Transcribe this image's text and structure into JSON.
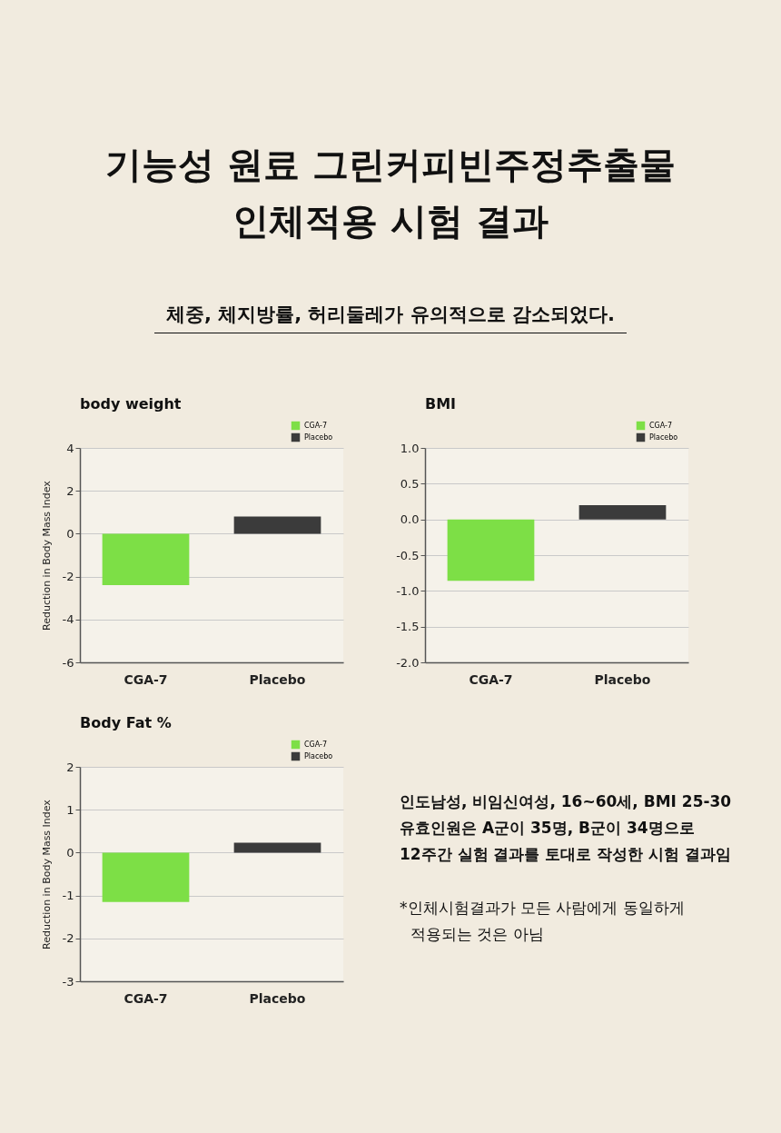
{
  "chart_data": [
    {
      "type": "other",
      "title": "기능성 원료 그린커피빈주정추출물\n인체적용 시험 결과",
      "subtitle": "체중, 체지방률, 허리둘레가 유의적으로 감소되었다."
    },
    {
      "type": "bar",
      "title": "body weight",
      "ylabel": "Reduction in Body Mass Index",
      "categories": [
        "CGA-7",
        "Placebo"
      ],
      "series": [
        {
          "name": "CGA-7",
          "color": "#7ddf46",
          "values": [
            -2.4,
            null
          ]
        },
        {
          "name": "Placebo",
          "color": "#3b3b3b",
          "values": [
            null,
            0.8
          ]
        }
      ],
      "ylim": [
        -6,
        4
      ],
      "yticks": [
        -6,
        -4,
        -2,
        0,
        2,
        4
      ],
      "grid": "y",
      "legend": "top right"
    },
    {
      "type": "bar",
      "title": "BMI",
      "categories": [
        "CGA-7",
        "Placebo"
      ],
      "series": [
        {
          "name": "CGA-7",
          "color": "#7ddf46",
          "values": [
            -0.86,
            null
          ]
        },
        {
          "name": "Placebo",
          "color": "#3b3b3b",
          "values": [
            null,
            0.2
          ]
        }
      ],
      "ylim": [
        -2,
        1
      ],
      "yticks": [
        {
          "value": -2,
          "label": "-2.0"
        },
        {
          "value": -1.5,
          "label": "-1.5"
        },
        {
          "value": -1,
          "label": "-1.0"
        },
        {
          "value": -0.5,
          "label": "-0.5"
        },
        {
          "value": 0,
          "label": "0.0"
        },
        {
          "value": 0.5,
          "label": "0.5"
        },
        {
          "value": 1,
          "label": "1.0"
        }
      ],
      "grid": "y",
      "legend": "top right"
    },
    {
      "type": "bar",
      "title": "Body Fat %",
      "ylabel": "Reduction in Body Mass Index",
      "categories": [
        "CGA-7",
        "Placebo"
      ],
      "series": [
        {
          "name": "CGA-7",
          "color": "#7ddf46",
          "values": [
            -1.15,
            null
          ]
        },
        {
          "name": "Placebo",
          "color": "#3b3b3b",
          "values": [
            null,
            0.23
          ]
        }
      ],
      "ylim": [
        -3,
        2
      ],
      "yticks": [
        -3,
        -2,
        -1,
        0,
        1,
        2
      ],
      "grid": "y",
      "legend": "top right"
    },
    {
      "type": "other",
      "annotations": [
        "인도남성, 비임신여성, 16~60세, BMI 25-30\n유효인원은 A군이 35명, B군이 34명으로\n12주간 실험 결과를 토대로 작성한 시험 결과임",
        "*인체시험결과가 모든 사람에게 동일하게\n적용되는 것은 아님"
      ]
    }
  ]
}
